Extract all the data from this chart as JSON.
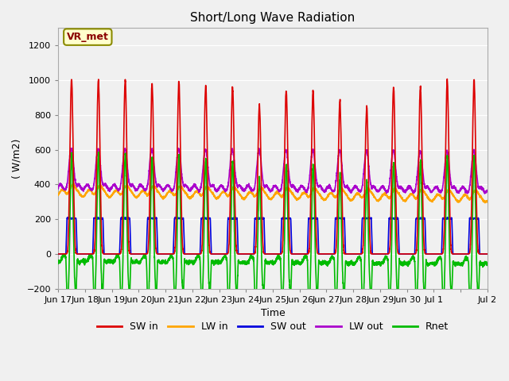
{
  "title": "Short/Long Wave Radiation",
  "xlabel": "Time",
  "ylabel": "( W/m2)",
  "ylim": [
    -200,
    1300
  ],
  "yticks": [
    -200,
    0,
    200,
    400,
    600,
    800,
    1000,
    1200
  ],
  "fig_bg_color": "#f0f0f0",
  "plot_bg_color": "#e8e8e8",
  "annotation_text": "VR_met",
  "annotation_box_color": "#ffffcc",
  "annotation_border_color": "#8b8b00",
  "series": {
    "SW_in": {
      "color": "#dd0000",
      "label": "SW in",
      "lw": 1.2
    },
    "LW_in": {
      "color": "#ffa500",
      "label": "LW in",
      "lw": 1.2
    },
    "SW_out": {
      "color": "#0000dd",
      "label": "SW out",
      "lw": 1.2
    },
    "LW_out": {
      "color": "#aa00cc",
      "label": "LW out",
      "lw": 1.2
    },
    "Rnet": {
      "color": "#00bb00",
      "label": "Rnet",
      "lw": 1.2
    }
  },
  "x_tick_labels": [
    "Jun 17",
    "Jun 18",
    "Jun 19",
    "Jun 20",
    "Jun 21",
    "Jun 22",
    "Jun 23",
    "Jun 24",
    "Jun 25",
    "Jun 26",
    "Jun 27",
    "Jun 28",
    "Jun 29",
    "Jun 30",
    "Jul 1",
    "",
    "Jul 2"
  ],
  "n_days": 16,
  "pts_per_day": 240
}
